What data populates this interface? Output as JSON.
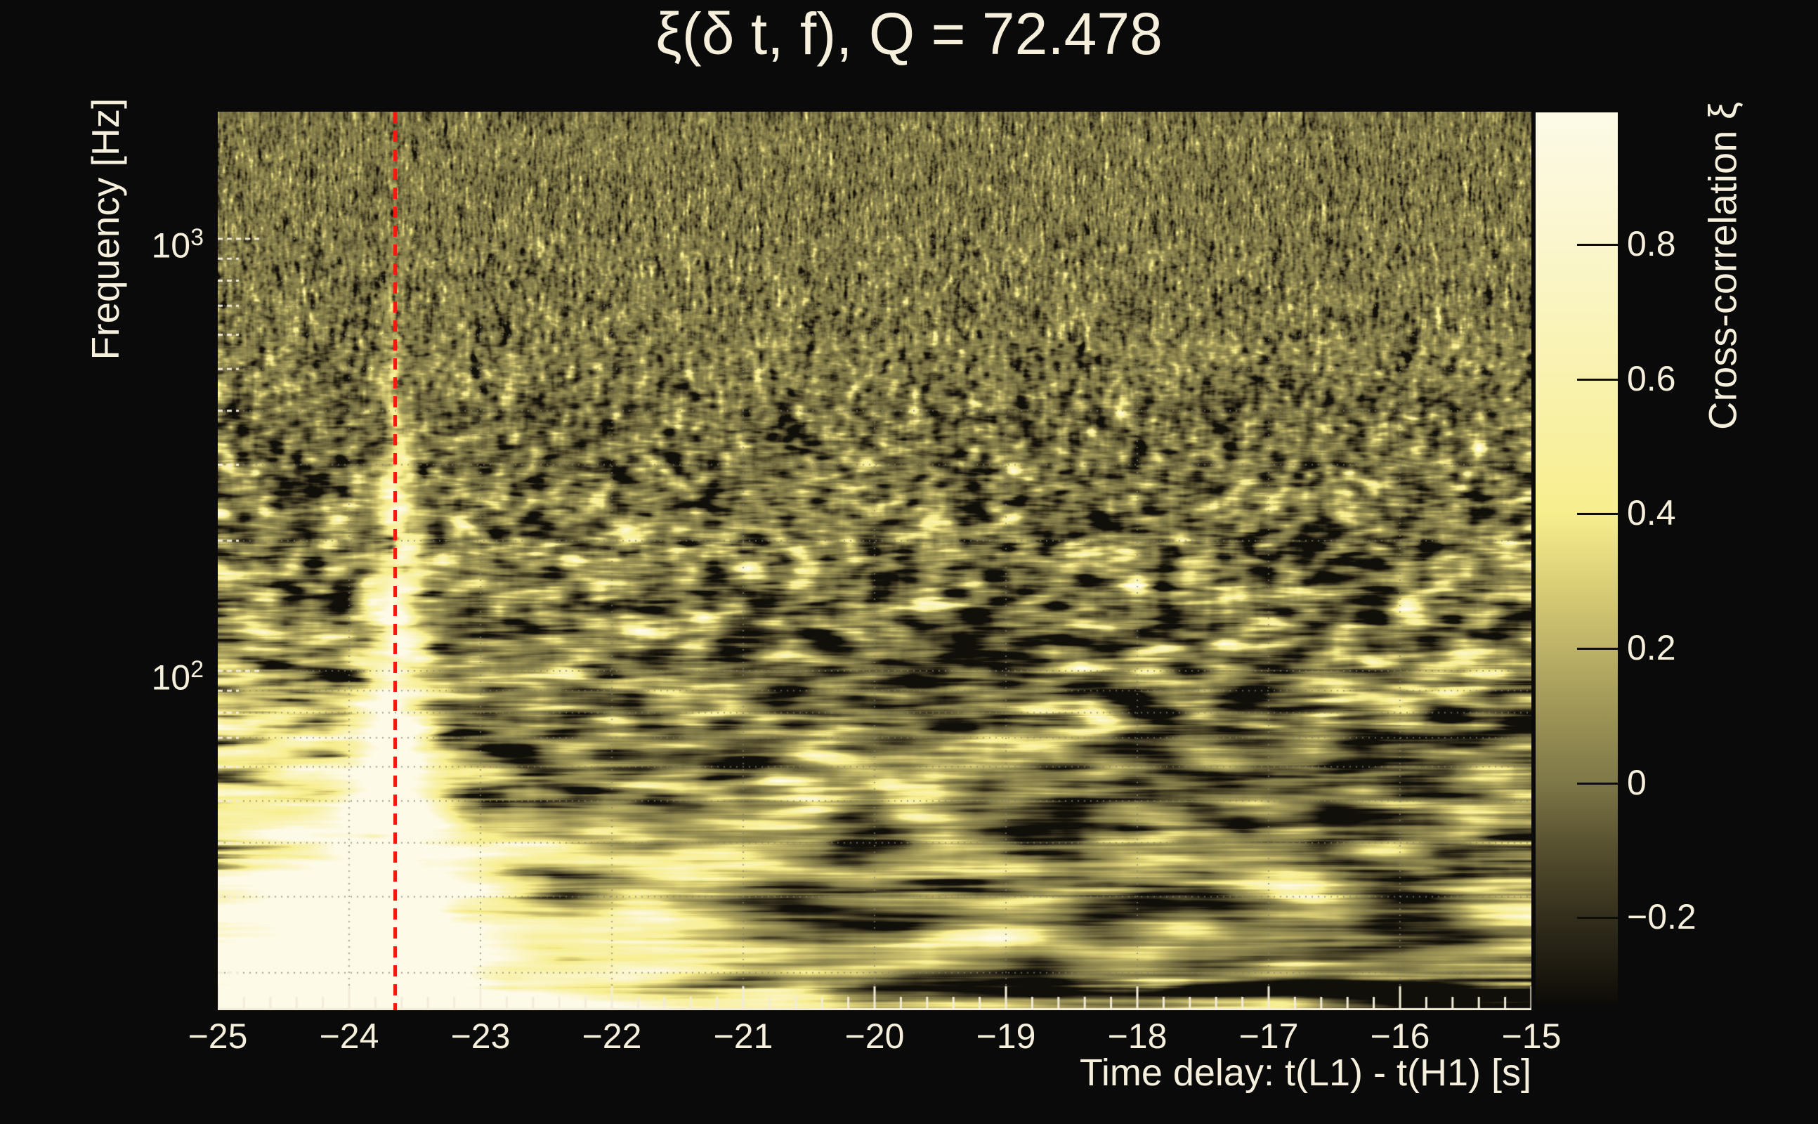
{
  "title": "ξ(δ t, f), Q = 72.478",
  "colors": {
    "background": "#0a0a0a",
    "text": "#f5efdc",
    "marker_line": "#f2190f",
    "grid_dots": "#8a8a7a",
    "axis_ticks": "#f2ecd8"
  },
  "x_axis": {
    "title": "Time delay: t(L1) - t(H1) [s]",
    "range": [
      -25,
      -15
    ],
    "minor_step": 0.2,
    "ticks": [
      {
        "v": -25,
        "label": "−25"
      },
      {
        "v": -24,
        "label": "−24"
      },
      {
        "v": -23,
        "label": "−23"
      },
      {
        "v": -22,
        "label": "−22"
      },
      {
        "v": -21,
        "label": "−21"
      },
      {
        "v": -20,
        "label": "−20"
      },
      {
        "v": -19,
        "label": "−19"
      },
      {
        "v": -18,
        "label": "−18"
      },
      {
        "v": -17,
        "label": "−17"
      },
      {
        "v": -16,
        "label": "−16"
      },
      {
        "v": -15,
        "label": "−15"
      }
    ]
  },
  "y_axis": {
    "title": "Frequency [Hz]",
    "scale": "log",
    "range_hz": [
      16.4,
      1970
    ],
    "major_ticks": [
      {
        "f": 1000,
        "base": "10",
        "exp": "3"
      },
      {
        "f": 100,
        "base": "10",
        "exp": "2"
      }
    ],
    "minor_ticks_hz": [
      20,
      30,
      40,
      50,
      60,
      70,
      80,
      90,
      200,
      300,
      400,
      500,
      600,
      700,
      800,
      900
    ]
  },
  "colorbar": {
    "title": "Cross-correlation ξ",
    "range": [
      -0.329,
      0.996
    ],
    "ticks": [
      {
        "v": 0.8,
        "label": "0.8"
      },
      {
        "v": 0.6,
        "label": "0.6"
      },
      {
        "v": 0.4,
        "label": "0.4"
      },
      {
        "v": 0.2,
        "label": "0.2"
      },
      {
        "v": 0.0,
        "label": "0"
      },
      {
        "v": -0.2,
        "label": "−0.2"
      }
    ],
    "stops": [
      {
        "xi": 0.996,
        "color": "#fdfae8"
      },
      {
        "xi": 0.8,
        "color": "#fbf6cc"
      },
      {
        "xi": 0.6,
        "color": "#f9f2ae"
      },
      {
        "xi": 0.4,
        "color": "#f7ee8e"
      },
      {
        "xi": 0.3,
        "color": "#dcd077"
      },
      {
        "xi": 0.2,
        "color": "#bdb267"
      },
      {
        "xi": 0.1,
        "color": "#9c9355"
      },
      {
        "xi": 0.0,
        "color": "#7e7747"
      },
      {
        "xi": -0.1,
        "color": "#554e2e"
      },
      {
        "xi": -0.2,
        "color": "#332e1c"
      },
      {
        "xi": -0.329,
        "color": "#0d0b07"
      }
    ]
  },
  "marker": {
    "type": "vertical-dashed-line",
    "time_delay_s": -23.65
  },
  "chart_data": {
    "type": "heatmap",
    "title": "ξ(δ t, f), Q = 72.478",
    "q_value": 72.478,
    "xlabel": "Time delay: t(L1) - t(H1) [s]",
    "ylabel": "Frequency [Hz]",
    "zlabel": "Cross-correlation ξ",
    "x_range_s": [
      -25,
      -15
    ],
    "y_range_hz": [
      16.4,
      1970
    ],
    "y_scale": "log",
    "z_range": [
      -0.329,
      0.996
    ],
    "z_ticks": [
      0.8,
      0.6,
      0.4,
      0.2,
      0,
      -0.2
    ],
    "grid": "dotted gridlines at every x integer and every log-decade subtick",
    "legend": "colorbar right",
    "marker_line_s": -23.65,
    "peak": {
      "time_delay_s": -23.6,
      "freq_extent_hz": [
        16,
        400
      ],
      "xi_max": 0.99,
      "description": "bright vertical correlation ridge at dt ≈ −23.6 s, widening and saturating toward low frequency"
    },
    "texture": [
      "fine-grained olive noise (ξ ≈ 0 ± 0.1) above ~500 Hz",
      "pale-yellow speckle blobs (ξ ≈ 0.3–0.5) between ~80 and 500 Hz",
      "long horizontal streaks below ~80 Hz",
      "dark band (ξ ≈ −0.3) near 18 Hz strongest on right half",
      "bright band (ξ ≈ 0.6–0.9) along the bottom edge, brightest left of −21 s"
    ]
  }
}
